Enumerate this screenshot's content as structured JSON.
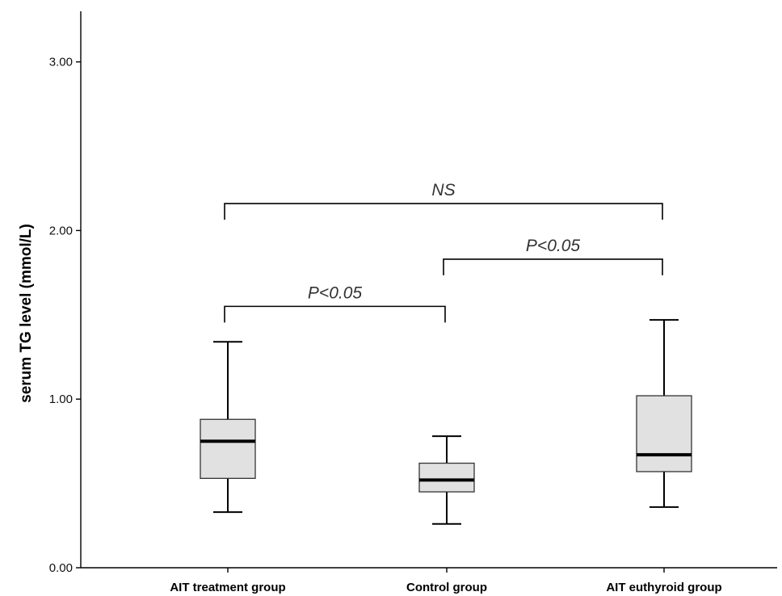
{
  "chart_data": {
    "type": "box",
    "ylabel": "serum TG level (mmol/L)",
    "ylim": [
      0,
      3.3
    ],
    "y_ticks": [
      {
        "value": 0,
        "label": "0.00"
      },
      {
        "value": 1,
        "label": "1.00"
      },
      {
        "value": 2,
        "label": "2.00"
      },
      {
        "value": 3,
        "label": "3.00"
      }
    ],
    "grid": false,
    "categories": [
      "AIT treatment group",
      "Control group",
      "AIT euthyroid group"
    ],
    "boxes": [
      {
        "category": "AIT treatment group",
        "min": 0.33,
        "q1": 0.53,
        "median": 0.75,
        "q3": 0.88,
        "max": 1.34
      },
      {
        "category": "Control group",
        "min": 0.26,
        "q1": 0.45,
        "median": 0.52,
        "q3": 0.62,
        "max": 0.78
      },
      {
        "category": "AIT euthyroid group",
        "min": 0.36,
        "q1": 0.57,
        "median": 0.67,
        "q3": 1.02,
        "max": 1.47
      }
    ],
    "annotations": [
      {
        "label": "NS",
        "from": "AIT treatment group",
        "to": "AIT euthyroid group",
        "y": 2.16
      },
      {
        "label": "P<0.05",
        "from": "Control group",
        "to": "AIT euthyroid group",
        "y": 1.83
      },
      {
        "label": "P<0.05",
        "from": "AIT treatment group",
        "to": "Control group",
        "y": 1.55
      }
    ]
  }
}
